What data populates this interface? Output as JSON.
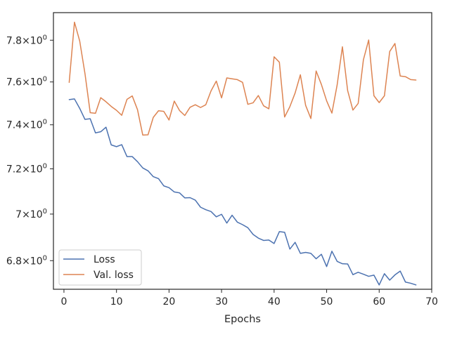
{
  "chart_data": {
    "type": "line",
    "title": "",
    "xlabel": "Epochs",
    "ylabel": "",
    "xlim": [
      -2,
      70
    ],
    "ylim": [
      6.68,
      7.935
    ],
    "y_scale": "log",
    "x_ticks": [
      0,
      10,
      20,
      30,
      40,
      50,
      60,
      70
    ],
    "x_tick_labels": [
      "0",
      "10",
      "20",
      "30",
      "40",
      "50",
      "60",
      "70"
    ],
    "y_ticks": [
      6.8,
      7.0,
      7.2,
      7.4,
      7.6,
      7.8
    ],
    "y_tick_labels": [
      {
        "base": "6.8",
        "sign": "×",
        "exp_base": "10",
        "exp": "0"
      },
      {
        "base": "7",
        "sign": "×",
        "exp_base": "10",
        "exp": "0"
      },
      {
        "base": "7.2",
        "sign": "×",
        "exp_base": "10",
        "exp": "0"
      },
      {
        "base": "7.4",
        "sign": "×",
        "exp_base": "10",
        "exp": "0"
      },
      {
        "base": "7.6",
        "sign": "×",
        "exp_base": "10",
        "exp": "0"
      },
      {
        "base": "7.8",
        "sign": "×",
        "exp_base": "10",
        "exp": "0"
      }
    ],
    "grid": false,
    "legend_position": "lower-left",
    "series": [
      {
        "name": "Loss",
        "color": "#4c72b0",
        "x": [
          1,
          2,
          3,
          4,
          5,
          6,
          7,
          8,
          9,
          10,
          11,
          12,
          13,
          14,
          15,
          16,
          17,
          18,
          19,
          20,
          21,
          22,
          23,
          24,
          25,
          26,
          27,
          28,
          29,
          30,
          31,
          32,
          33,
          34,
          35,
          36,
          37,
          38,
          39,
          40,
          41,
          42,
          43,
          44,
          45,
          46,
          47,
          48,
          49,
          50,
          51,
          52,
          53,
          54,
          55,
          56,
          57,
          58,
          59,
          60,
          61,
          62,
          63,
          64,
          65,
          66,
          67
        ],
        "values": [
          7.517,
          7.52,
          7.476,
          7.425,
          7.428,
          7.363,
          7.368,
          7.389,
          7.308,
          7.3,
          7.309,
          7.255,
          7.255,
          7.232,
          7.204,
          7.191,
          7.165,
          7.156,
          7.124,
          7.116,
          7.097,
          7.093,
          7.071,
          7.072,
          7.061,
          7.03,
          7.019,
          7.011,
          6.988,
          6.999,
          6.961,
          6.995,
          6.965,
          6.954,
          6.941,
          6.912,
          6.896,
          6.886,
          6.888,
          6.873,
          6.924,
          6.921,
          6.849,
          6.878,
          6.831,
          6.835,
          6.831,
          6.808,
          6.827,
          6.775,
          6.84,
          6.797,
          6.787,
          6.786,
          6.741,
          6.751,
          6.743,
          6.734,
          6.739,
          6.698,
          6.745,
          6.718,
          6.74,
          6.756,
          6.71,
          6.705,
          6.698
        ]
      },
      {
        "name": "Val. loss",
        "color": "#dd8452",
        "x": [
          1,
          2,
          3,
          4,
          5,
          6,
          7,
          8,
          9,
          10,
          11,
          12,
          13,
          14,
          15,
          16,
          17,
          18,
          19,
          20,
          21,
          22,
          23,
          24,
          25,
          26,
          27,
          28,
          29,
          30,
          31,
          32,
          33,
          34,
          35,
          36,
          37,
          38,
          39,
          40,
          41,
          42,
          43,
          44,
          45,
          46,
          47,
          48,
          49,
          50,
          51,
          52,
          53,
          54,
          55,
          56,
          57,
          58,
          59,
          60,
          61,
          62,
          63,
          64,
          65,
          66,
          67
        ],
        "values": [
          7.598,
          7.888,
          7.796,
          7.64,
          7.456,
          7.453,
          7.526,
          7.507,
          7.485,
          7.467,
          7.444,
          7.518,
          7.534,
          7.47,
          7.353,
          7.354,
          7.434,
          7.465,
          7.462,
          7.422,
          7.51,
          7.466,
          7.443,
          7.481,
          7.493,
          7.48,
          7.493,
          7.558,
          7.604,
          7.525,
          7.619,
          7.615,
          7.611,
          7.598,
          7.495,
          7.502,
          7.536,
          7.488,
          7.474,
          7.72,
          7.694,
          7.436,
          7.484,
          7.548,
          7.634,
          7.49,
          7.429,
          7.652,
          7.588,
          7.511,
          7.454,
          7.586,
          7.768,
          7.559,
          7.468,
          7.499,
          7.706,
          7.801,
          7.535,
          7.503,
          7.535,
          7.745,
          7.784,
          7.628,
          7.625,
          7.611,
          7.609
        ]
      }
    ]
  }
}
